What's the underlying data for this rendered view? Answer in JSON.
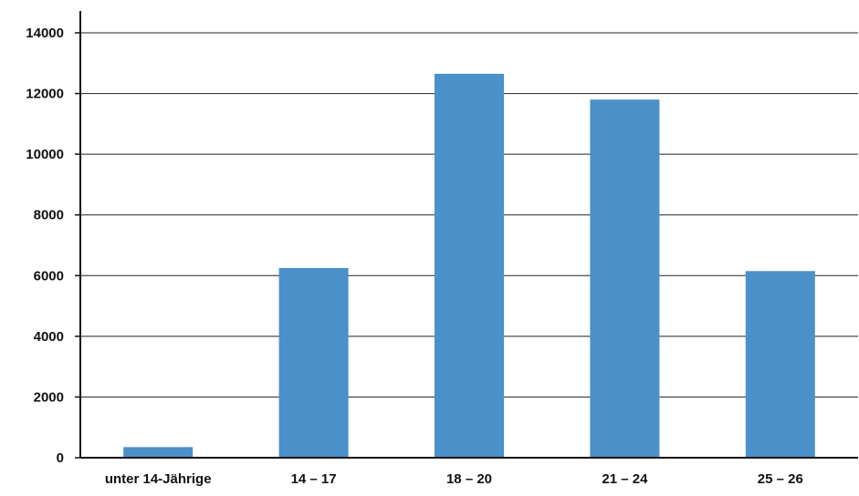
{
  "chart_data": {
    "type": "bar",
    "title": "",
    "xlabel": "",
    "ylabel": "",
    "categories": [
      "unter 14-Jährige",
      "14 – 17",
      "18 – 20",
      "21 – 24",
      "25 – 26"
    ],
    "values": [
      350,
      6250,
      12650,
      11800,
      6150
    ],
    "ylim": [
      0,
      14000
    ],
    "y_ticks": [
      0,
      2000,
      4000,
      6000,
      8000,
      10000,
      12000,
      14000
    ],
    "y_tick_labels": [
      "0",
      "2000",
      "4000",
      "6000",
      "8000",
      "10000",
      "12000",
      "14000"
    ],
    "grid": true,
    "legend": "none",
    "bar_color": "#4a90c9"
  }
}
